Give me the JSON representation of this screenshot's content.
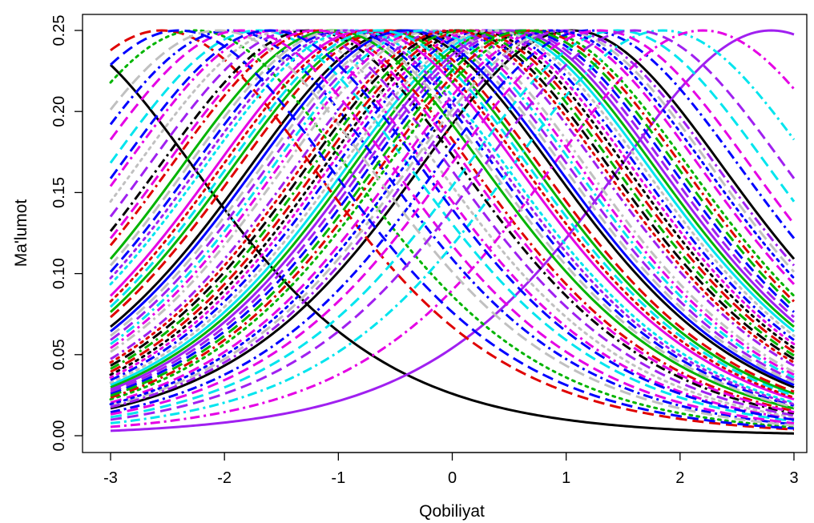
{
  "chart_data": {
    "type": "line",
    "title": "",
    "xlabel": "Qobiliyat",
    "ylabel": "Ma'lumot",
    "xlim": [
      -3,
      3
    ],
    "ylim": [
      0,
      0.25
    ],
    "x_ticks": [
      "-3",
      "-2",
      "-1",
      "0",
      "1",
      "2",
      "3"
    ],
    "y_ticks": [
      "0.00",
      "0.05",
      "0.10",
      "0.15",
      "0.20",
      "0.25"
    ],
    "grid": false,
    "legend": "none",
    "model": "2PL item information I(θ) = a²·P·(1−P), P = 1/(1+exp(−a(θ−b)))",
    "palette": [
      "#000000",
      "#df0000",
      "#00b400",
      "#0000ff",
      "#00e5ee",
      "#e500e5",
      "#c0c0c0",
      "#a020f0"
    ],
    "series": [
      {
        "a": 1.0,
        "b": -3.6,
        "color": "#000000",
        "dash": "solid"
      },
      {
        "a": 1.0,
        "b": 1.05,
        "color": "#000000",
        "dash": "solid"
      },
      {
        "a": 1.0,
        "b": 2.8,
        "color": "#a020f0",
        "dash": "solid"
      },
      {
        "a": 1.0,
        "b": -0.45,
        "color": "#000000",
        "dash": "solid"
      },
      {
        "a": 1.0,
        "b": 0.4,
        "color": "#00e5ee",
        "dash": "solid"
      },
      {
        "a": 1.0,
        "b": 0.45,
        "color": "#00b400",
        "dash": "solid"
      },
      {
        "a": 1.0,
        "b": -0.6,
        "color": "#00b400",
        "dash": "solid"
      },
      {
        "a": 1.0,
        "b": -0.55,
        "color": "#df0000",
        "dash": "dashed"
      },
      {
        "a": 1.0,
        "b": 0.2,
        "color": "#000000",
        "dash": "dotted"
      },
      {
        "a": 1.0,
        "b": -0.35,
        "color": "#c0c0c0",
        "dash": "dashed"
      },
      {
        "a": 1.0,
        "b": -0.3,
        "color": "#a020f0",
        "dash": "dashed"
      },
      {
        "a": 1.0,
        "b": -0.2,
        "color": "#e500e5",
        "dash": "dashdot"
      },
      {
        "a": 1.0,
        "b": 0.3,
        "color": "#0000ff",
        "dash": "dashdot"
      },
      {
        "a": 1.0,
        "b": 0.5,
        "color": "#a020f0",
        "dash": "solid"
      },
      {
        "a": 1.0,
        "b": -2.55,
        "color": "#df0000",
        "dash": "dashed"
      },
      {
        "a": 1.0,
        "b": -2.25,
        "color": "#00b400",
        "dash": "dotted"
      },
      {
        "a": 1.0,
        "b": -1.95,
        "color": "#0000ff",
        "dash": "dashdot"
      },
      {
        "a": 1.0,
        "b": -1.7,
        "color": "#00e5ee",
        "dash": "dashed"
      },
      {
        "a": 1.0,
        "b": -1.55,
        "color": "#e500e5",
        "dash": "dashdot"
      },
      {
        "a": 1.0,
        "b": -1.45,
        "color": "#c0c0c0",
        "dash": "dotted"
      },
      {
        "a": 1.0,
        "b": -1.35,
        "color": "#a020f0",
        "dash": "dashed"
      },
      {
        "a": 1.0,
        "b": -1.25,
        "color": "#000000",
        "dash": "dashdot"
      },
      {
        "a": 1.0,
        "b": -1.15,
        "color": "#df0000",
        "dash": "dashdot"
      },
      {
        "a": 1.0,
        "b": -1.05,
        "color": "#00b400",
        "dash": "solid"
      },
      {
        "a": 1.0,
        "b": -0.95,
        "color": "#0000ff",
        "dash": "dashed"
      },
      {
        "a": 1.0,
        "b": -0.85,
        "color": "#00e5ee",
        "dash": "dotted"
      },
      {
        "a": 1.0,
        "b": -0.75,
        "color": "#e500e5",
        "dash": "solid"
      },
      {
        "a": 1.0,
        "b": -0.15,
        "color": "#c0c0c0",
        "dash": "dashdot"
      },
      {
        "a": 1.0,
        "b": -0.05,
        "color": "#a020f0",
        "dash": "dashdot"
      },
      {
        "a": 1.0,
        "b": 0.05,
        "color": "#000000",
        "dash": "dashed"
      },
      {
        "a": 1.0,
        "b": 0.15,
        "color": "#df0000",
        "dash": "dashed"
      },
      {
        "a": 1.0,
        "b": 0.6,
        "color": "#0000ff",
        "dash": "dashed"
      },
      {
        "a": 1.0,
        "b": 0.75,
        "color": "#00b400",
        "dash": "dotted"
      },
      {
        "a": 1.0,
        "b": 0.85,
        "color": "#e500e5",
        "dash": "dashed"
      },
      {
        "a": 1.0,
        "b": 0.95,
        "color": "#c0c0c0",
        "dash": "dashed"
      },
      {
        "a": 1.0,
        "b": 1.2,
        "color": "#0000ff",
        "dash": "dashdot"
      },
      {
        "a": 1.0,
        "b": 1.45,
        "color": "#00e5ee",
        "dash": "dashed"
      },
      {
        "a": 1.0,
        "b": 1.85,
        "color": "#00e5ee",
        "dash": "dashdot"
      },
      {
        "a": 1.0,
        "b": 2.2,
        "color": "#e500e5",
        "dash": "dashdot"
      },
      {
        "a": 1.0,
        "b": -0.7,
        "color": "#df0000",
        "dash": "dotted"
      },
      {
        "a": 1.0,
        "b": -0.4,
        "color": "#0000ff",
        "dash": "solid"
      },
      {
        "a": 1.0,
        "b": -0.25,
        "color": "#00e5ee",
        "dash": "dashdot"
      },
      {
        "a": 1.0,
        "b": 0.25,
        "color": "#e500e5",
        "dash": "dotted"
      },
      {
        "a": 1.0,
        "b": 0.55,
        "color": "#a020f0",
        "dash": "dashed"
      },
      {
        "a": 1.0,
        "b": 0.7,
        "color": "#df0000",
        "dash": "dashdot"
      },
      {
        "a": 1.0,
        "b": 1.0,
        "color": "#a020f0",
        "dash": "dashdot"
      },
      {
        "a": 1.0,
        "b": -2.05,
        "color": "#c0c0c0",
        "dash": "dashed"
      },
      {
        "a": 1.0,
        "b": -1.85,
        "color": "#e500e5",
        "dash": "dashed"
      },
      {
        "a": 1.0,
        "b": -1.6,
        "color": "#0000ff",
        "dash": "dashed"
      },
      {
        "a": 1.0,
        "b": -1.0,
        "color": "#c0c0c0",
        "dash": "dashed"
      },
      {
        "a": 1.0,
        "b": -0.9,
        "color": "#a020f0",
        "dash": "dotted"
      },
      {
        "a": 1.0,
        "b": 0.1,
        "color": "#00b400",
        "dash": "dashdot"
      },
      {
        "a": 1.0,
        "b": 0.35,
        "color": "#c0c0c0",
        "dash": "dotted"
      },
      {
        "a": 1.0,
        "b": 0.9,
        "color": "#0000ff",
        "dash": "dotted"
      },
      {
        "a": 1.0,
        "b": 1.3,
        "color": "#e500e5",
        "dash": "dashed"
      },
      {
        "a": 1.0,
        "b": -2.4,
        "color": "#0000ff",
        "dash": "dashed"
      },
      {
        "a": 1.0,
        "b": -1.2,
        "color": "#e500e5",
        "dash": "dashed"
      },
      {
        "a": 1.0,
        "b": -0.65,
        "color": "#00e5ee",
        "dash": "dashed"
      },
      {
        "a": 1.0,
        "b": 0.0,
        "color": "#df0000",
        "dash": "dotted"
      },
      {
        "a": 1.0,
        "b": 0.65,
        "color": "#00b400",
        "dash": "dashed"
      },
      {
        "a": 1.0,
        "b": 1.6,
        "color": "#a020f0",
        "dash": "dashed"
      }
    ]
  }
}
